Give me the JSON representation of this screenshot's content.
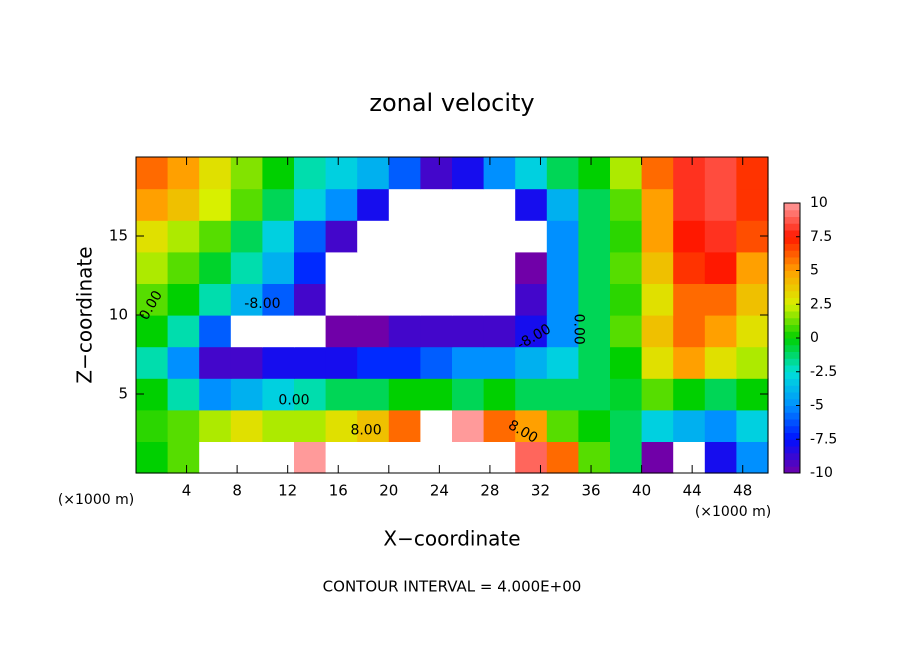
{
  "chart_data": {
    "type": "contour",
    "title": "zonal velocity",
    "x_label": "X−coordinate",
    "y_label": "Z−coordinate",
    "x_unit_label": "(×1000 m)",
    "y_unit_label": "(×1000 m)",
    "footer": "CONTOUR INTERVAL = 4.000E+00",
    "xlim": [
      0,
      50
    ],
    "ylim": [
      0,
      20
    ],
    "xticks": [
      4,
      8,
      12,
      16,
      20,
      24,
      28,
      32,
      36,
      40,
      44,
      48
    ],
    "yticks": [
      5,
      10,
      15
    ],
    "x": [
      1.25,
      3.75,
      6.25,
      8.75,
      11.25,
      13.75,
      16.25,
      18.75,
      21.25,
      23.75,
      26.25,
      28.75,
      31.25,
      33.75,
      36.25,
      38.75,
      41.25,
      43.75,
      46.25,
      48.75
    ],
    "y": [
      1,
      3,
      5,
      7,
      9,
      11,
      13,
      15,
      17,
      19
    ],
    "z": [
      [
        0,
        1,
        11,
        12,
        12,
        10,
        11,
        12,
        11,
        12,
        12,
        11,
        9,
        6,
        1,
        -1,
        -10,
        -12,
        -8,
        -5
      ],
      [
        0.5,
        1,
        2,
        3,
        2,
        2,
        3,
        4,
        6,
        12,
        10,
        6,
        5,
        1,
        0,
        -1,
        -3,
        -4,
        -5,
        -3
      ],
      [
        0,
        -2,
        -5,
        -4,
        -3,
        -2,
        -1,
        -1,
        0,
        0,
        -1,
        0,
        -1,
        -1,
        -1,
        -0.5,
        1,
        0,
        -1,
        0
      ],
      [
        -2,
        -5,
        -9,
        -9,
        -8,
        -8,
        -8,
        -7,
        -7,
        -6,
        -5,
        -5,
        -4,
        -3,
        -1,
        0,
        3,
        5,
        3,
        2
      ],
      [
        0,
        -2,
        -6,
        -12,
        -12,
        -11,
        -10,
        -10,
        -9,
        -9,
        -9,
        -9,
        -8,
        -5,
        -1,
        1,
        4,
        6,
        5,
        3
      ],
      [
        1,
        0,
        -2,
        -4,
        -6,
        -9,
        -12,
        -13,
        -13,
        -12,
        -12,
        -11,
        -9,
        -5,
        -1,
        0.5,
        3,
        6,
        6,
        4
      ],
      [
        2,
        1,
        -0.5,
        -2,
        -4,
        -7,
        -11,
        -13,
        -13,
        -13,
        -12,
        -12,
        -10,
        -5,
        -1,
        1,
        4,
        7,
        7.5,
        5
      ],
      [
        3,
        2,
        1,
        -1,
        -3,
        -6,
        -9,
        -12,
        -13,
        -13,
        -13,
        -12,
        -11,
        -5,
        -1,
        0.5,
        5,
        7.5,
        8,
        6.5
      ],
      [
        5,
        4,
        2.5,
        1,
        -1,
        -3,
        -5,
        -8,
        -11,
        -12,
        -12,
        -11,
        -8,
        -4,
        -1,
        1,
        5,
        8,
        8.5,
        7
      ],
      [
        6,
        5,
        3,
        1.5,
        0,
        -2,
        -3,
        -4,
        -6,
        -9,
        -8,
        -5,
        -3,
        -1,
        0,
        2,
        6,
        8,
        8.5,
        7
      ]
    ],
    "colorbar_lim": [
      -10,
      10
    ],
    "colorbar_ticks": [
      10,
      7.5,
      5,
      2.5,
      0,
      -2.5,
      -5,
      -7.5,
      -10
    ],
    "colorscale": [
      {
        "value": -10,
        "color": "#7000a8"
      },
      {
        "value": -7.5,
        "color": "#0010ff"
      },
      {
        "value": -5,
        "color": "#0090ff"
      },
      {
        "value": -2.5,
        "color": "#00e0d8"
      },
      {
        "value": 0,
        "color": "#00d000"
      },
      {
        "value": 2.5,
        "color": "#d8f000"
      },
      {
        "value": 5,
        "color": "#ffa000"
      },
      {
        "value": 7.5,
        "color": "#ff1800"
      },
      {
        "value": 10,
        "color": "#ff9a9a"
      }
    ],
    "out_of_range_color": "#ffffff",
    "contour_labels": [
      {
        "text": "0.00",
        "x": 1.2,
        "z": 10.6,
        "angle": -60
      },
      {
        "text": "-8.00",
        "x": 10,
        "z": 10.7,
        "angle": 0
      },
      {
        "text": "0.00",
        "x": 12.5,
        "z": 4.6,
        "angle": 0
      },
      {
        "text": "8.00",
        "x": 18.2,
        "z": 2.7,
        "angle": 0
      },
      {
        "text": "8.00",
        "x": 30.6,
        "z": 2.6,
        "angle": 30
      },
      {
        "text": "-8.00",
        "x": 31.5,
        "z": 8.6,
        "angle": -30
      },
      {
        "text": "0.00",
        "x": 35,
        "z": 9.1,
        "angle": 90
      }
    ]
  }
}
